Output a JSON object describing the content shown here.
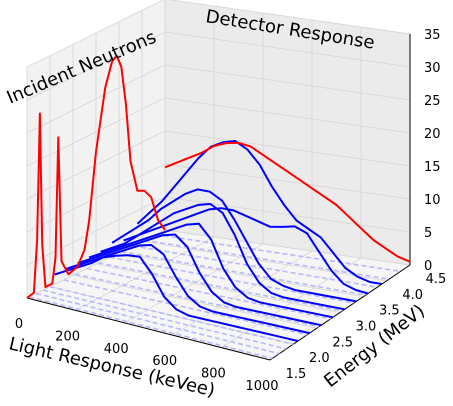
{
  "chart_data": {
    "type": "line",
    "projection": "3d",
    "title": "",
    "annotations": {
      "left": "Incident Neutrons",
      "right": "Detector Response"
    },
    "xlabel": "Light Response (keVee)",
    "ylabel": "Energy (MeV)",
    "zlabel": "",
    "xlim": [
      0,
      1000
    ],
    "ylim": [
      1.5,
      4.5
    ],
    "zlim": [
      0,
      35
    ],
    "xticks": [
      "0",
      "200",
      "400",
      "600",
      "800",
      "1000"
    ],
    "yticks": [
      "1.5",
      "2.0",
      "2.5",
      "3.0",
      "3.5",
      "4.0",
      "4.5"
    ],
    "zticks": [
      "0",
      "5",
      "10",
      "15",
      "20",
      "25",
      "30",
      "35"
    ],
    "grid": true,
    "colors": {
      "incident": "#ff0000",
      "response": "#0000ff",
      "basis": "#b8b8ff",
      "pane": "#f2f2f2",
      "grid": "#d8d8d8"
    },
    "incident_spectrum": {
      "projected_on": "x=0 wall",
      "energy": [
        1.5,
        1.65,
        1.72,
        1.78,
        1.83,
        1.9,
        2.05,
        2.12,
        2.18,
        2.25,
        2.4,
        2.6,
        2.75,
        2.85,
        3.0,
        3.2,
        3.35,
        3.45,
        3.55,
        3.65,
        3.75,
        3.9,
        4.05,
        4.2,
        4.35,
        4.5
      ],
      "flux": [
        0,
        0.3,
        8,
        27,
        7,
        0.3,
        0.3,
        4,
        22,
        3,
        0.5,
        1,
        3,
        7,
        17,
        26,
        29.5,
        30,
        28,
        22,
        13,
        8,
        7.5,
        6,
        2,
        0
      ]
    },
    "detector_response": {
      "projected_on": "back wall (y=4.5)",
      "light": [
        0,
        50,
        100,
        150,
        200,
        250,
        300,
        350,
        400,
        450,
        500,
        550,
        600,
        650,
        700,
        750,
        800,
        850,
        900,
        950,
        1000
      ],
      "counts": [
        9.5,
        10.5,
        11.5,
        12.5,
        13.8,
        14.5,
        14.8,
        14.5,
        13.5,
        12.5,
        11.5,
        10.5,
        9.5,
        8.5,
        7.5,
        6,
        4.5,
        3,
        2,
        1,
        0.5
      ]
    },
    "series": [
      {
        "energy": 2.1,
        "light": [
          0,
          50,
          100,
          150,
          200,
          250,
          300,
          350,
          400,
          450,
          500,
          550,
          600,
          650,
          700,
          750,
          800,
          850,
          900,
          950,
          1000
        ],
        "z": [
          1.5,
          2.5,
          3.5,
          4.5,
          5.8,
          6.5,
          7,
          7.2,
          5,
          2,
          0.5,
          0,
          0,
          0,
          0,
          0,
          0,
          0,
          0,
          0,
          0
        ]
      },
      {
        "energy": 2.35,
        "light": [
          0,
          50,
          100,
          150,
          200,
          250,
          300,
          350,
          400,
          450,
          500,
          550,
          600,
          650,
          700,
          750,
          800,
          850,
          900,
          950,
          1000
        ],
        "z": [
          1.5,
          2.5,
          3.5,
          4.5,
          5.5,
          6.5,
          7.5,
          8,
          7,
          4,
          1.5,
          0.3,
          0,
          0,
          0,
          0,
          0,
          0,
          0,
          0,
          0
        ]
      },
      {
        "energy": 2.6,
        "light": [
          0,
          50,
          100,
          150,
          200,
          250,
          300,
          350,
          400,
          450,
          500,
          550,
          600,
          650,
          700,
          750,
          800,
          850,
          900,
          950,
          1000
        ],
        "z": [
          1.5,
          2.5,
          3.5,
          4.5,
          5.5,
          6.5,
          7.5,
          8.5,
          9,
          7.5,
          4,
          1.5,
          0.3,
          0,
          0,
          0,
          0,
          0,
          0,
          0,
          0
        ]
      },
      {
        "energy": 2.85,
        "light": [
          0,
          50,
          100,
          150,
          200,
          250,
          300,
          350,
          400,
          450,
          500,
          550,
          600,
          650,
          700,
          750,
          800,
          850,
          900,
          950,
          1000
        ],
        "z": [
          1.5,
          2.5,
          3.5,
          4.5,
          5.5,
          6.5,
          7.5,
          8.5,
          9.5,
          10,
          8,
          4,
          1.5,
          0.3,
          0,
          0,
          0,
          0,
          0,
          0,
          0
        ]
      },
      {
        "energy": 3.1,
        "light": [
          0,
          50,
          100,
          150,
          200,
          250,
          300,
          350,
          400,
          450,
          500,
          550,
          600,
          650,
          700,
          750,
          800,
          850,
          900,
          950,
          1000
        ],
        "z": [
          1.5,
          2.5,
          3.5,
          5,
          6.5,
          8,
          9.5,
          10.5,
          11.5,
          12,
          11,
          8,
          4,
          1.5,
          0.3,
          0,
          0,
          0,
          0,
          0,
          0
        ]
      },
      {
        "energy": 3.35,
        "light": [
          0,
          50,
          100,
          150,
          200,
          250,
          300,
          350,
          400,
          450,
          500,
          550,
          600,
          650,
          700,
          750,
          800,
          850,
          900,
          950,
          1000
        ],
        "z": [
          2,
          3.5,
          5,
          6.5,
          8.5,
          10,
          11.5,
          12.5,
          12.5,
          11.5,
          9,
          6,
          3,
          1,
          0.3,
          0,
          0,
          0,
          0,
          0,
          0
        ]
      },
      {
        "energy": 3.6,
        "light": [
          0,
          50,
          100,
          150,
          200,
          250,
          300,
          350,
          400,
          450,
          500,
          550,
          600,
          650,
          700,
          750,
          800,
          850,
          900,
          950,
          1000
        ],
        "z": [
          1.5,
          2.5,
          3.5,
          4.5,
          5.5,
          6.5,
          7.5,
          8.5,
          9,
          9,
          8.5,
          8,
          7.5,
          7.8,
          8.2,
          7.5,
          5,
          2.5,
          0.8,
          0.2,
          0
        ]
      },
      {
        "energy": 3.9,
        "light": [
          0,
          50,
          100,
          150,
          200,
          250,
          300,
          350,
          400,
          450,
          500,
          550,
          600,
          650,
          700,
          750,
          800,
          850,
          900,
          950,
          1000
        ],
        "z": [
          3,
          5,
          7,
          9.5,
          12,
          14.5,
          16.5,
          17.5,
          18,
          17,
          15,
          12,
          9.5,
          7.5,
          6.5,
          5.5,
          3.5,
          1.5,
          0.5,
          0,
          0
        ]
      }
    ],
    "dashed_series": [
      {
        "energy": 1.55
      },
      {
        "energy": 1.7
      },
      {
        "energy": 1.85
      },
      {
        "energy": 2.0
      },
      {
        "energy": 2.3
      },
      {
        "energy": 2.55
      },
      {
        "energy": 2.8
      },
      {
        "energy": 3.05
      },
      {
        "energy": 3.3
      },
      {
        "energy": 3.55
      },
      {
        "energy": 3.8
      },
      {
        "energy": 4.05
      },
      {
        "energy": 4.3
      }
    ]
  }
}
